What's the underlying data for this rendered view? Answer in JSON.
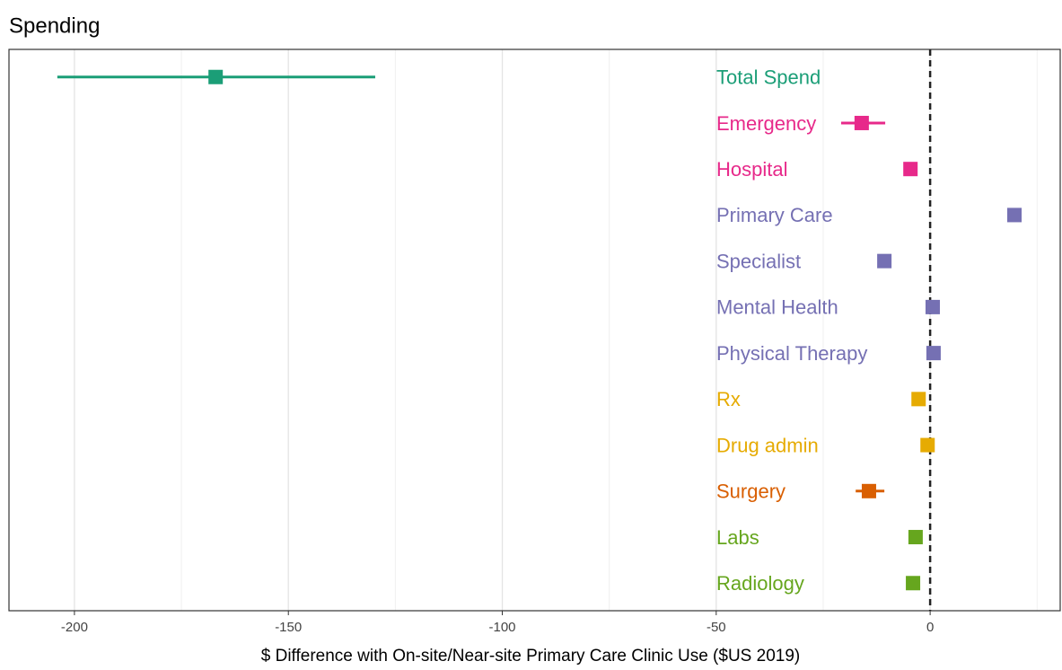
{
  "chart_data": {
    "type": "forest",
    "title": "Spending",
    "xlabel": "$ Difference with On-site/Near-site Primary Care Clinic Use  ($US 2019)",
    "categories": [
      "Total Spend",
      "Emergency",
      "Hospital",
      "Primary Care",
      "Specialist",
      "Mental Health",
      "Physical Therapy",
      "Rx",
      "Drug admin",
      "Surgery",
      "Labs",
      "Radiology"
    ],
    "values": [
      -167,
      -16,
      -4.6,
      19.7,
      -10.7,
      0.6,
      0.8,
      -2.7,
      -0.6,
      -14.3,
      -3.4,
      -4
    ],
    "lower": [
      -204,
      -20.8,
      null,
      null,
      null,
      null,
      null,
      null,
      null,
      -17.4,
      null,
      null
    ],
    "upper": [
      -129.7,
      -10.5,
      null,
      null,
      null,
      null,
      null,
      null,
      null,
      -10.7,
      null,
      null
    ],
    "colors": [
      "#1b9e77",
      "#e7298a",
      "#e7298a",
      "#7570b3",
      "#7570b3",
      "#7570b3",
      "#7570b3",
      "#e6ab02",
      "#e6ab02",
      "#d95f02",
      "#66a61e",
      "#66a61e"
    ],
    "xlim": [
      -215.3,
      30.4
    ],
    "xticks": [
      -200,
      -150,
      -100,
      -50,
      0
    ],
    "minor_xticks": [
      -175,
      -125,
      -75,
      -25,
      25
    ],
    "vline": 0,
    "grid": true
  }
}
